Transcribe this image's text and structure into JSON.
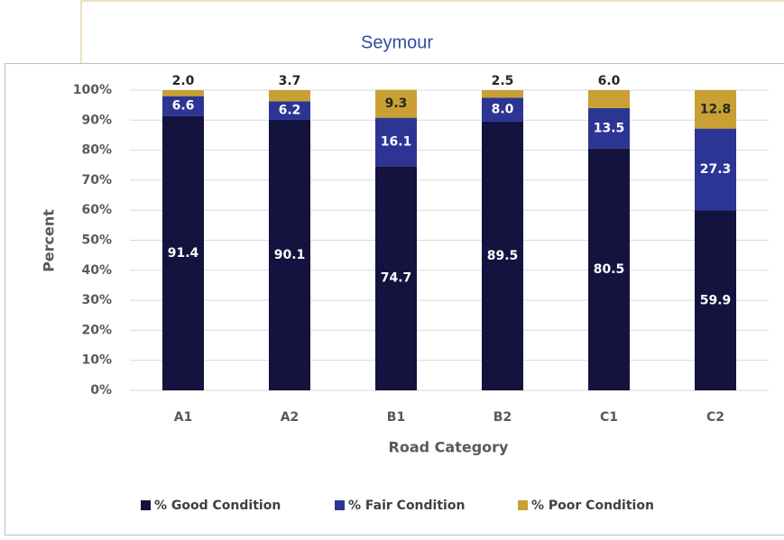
{
  "chart_data": {
    "type": "stacked_bar",
    "title": "Seymour",
    "x_label": "Road Category",
    "y_label": "Percent",
    "categories": [
      "A1",
      "A2",
      "B1",
      "B2",
      "C1",
      "C2"
    ],
    "series": [
      {
        "name": "% Good Condition",
        "color": "#14133f",
        "label_color": "#ffffff",
        "values": [
          91.4,
          90.1,
          74.7,
          89.5,
          80.5,
          59.9
        ],
        "value_labels": [
          "91.4",
          "90.1",
          "74.7",
          "89.5",
          "80.5",
          "59.9"
        ]
      },
      {
        "name": "% Fair Condition",
        "color": "#2c3594",
        "label_color": "#ffffff",
        "values": [
          6.6,
          6.2,
          16.1,
          8.0,
          13.5,
          27.3
        ],
        "value_labels": [
          "6.6",
          "6.2",
          "16.1",
          "8.0",
          "13.5",
          "27.3"
        ]
      },
      {
        "name": "% Poor Condition",
        "color": "#c9a033",
        "label_color": "#262626",
        "values": [
          2.0,
          3.7,
          9.3,
          2.5,
          6.0,
          12.8
        ],
        "value_labels": [
          "2.0",
          "3.7",
          "9.3",
          "2.5",
          "6.0",
          "12.8"
        ]
      }
    ],
    "ylim": [
      0,
      100
    ],
    "yticks": [
      {
        "value": 0,
        "label": "0%"
      },
      {
        "value": 10,
        "label": "10%"
      },
      {
        "value": 20,
        "label": "20%"
      },
      {
        "value": 30,
        "label": "30%"
      },
      {
        "value": 40,
        "label": "40%"
      },
      {
        "value": 50,
        "label": "50%"
      },
      {
        "value": 60,
        "label": "60%"
      },
      {
        "value": 70,
        "label": "70%"
      },
      {
        "value": 80,
        "label": "80%"
      },
      {
        "value": 90,
        "label": "90%"
      },
      {
        "value": 100,
        "label": "100%"
      }
    ],
    "grid": true,
    "legend": "bottom"
  }
}
